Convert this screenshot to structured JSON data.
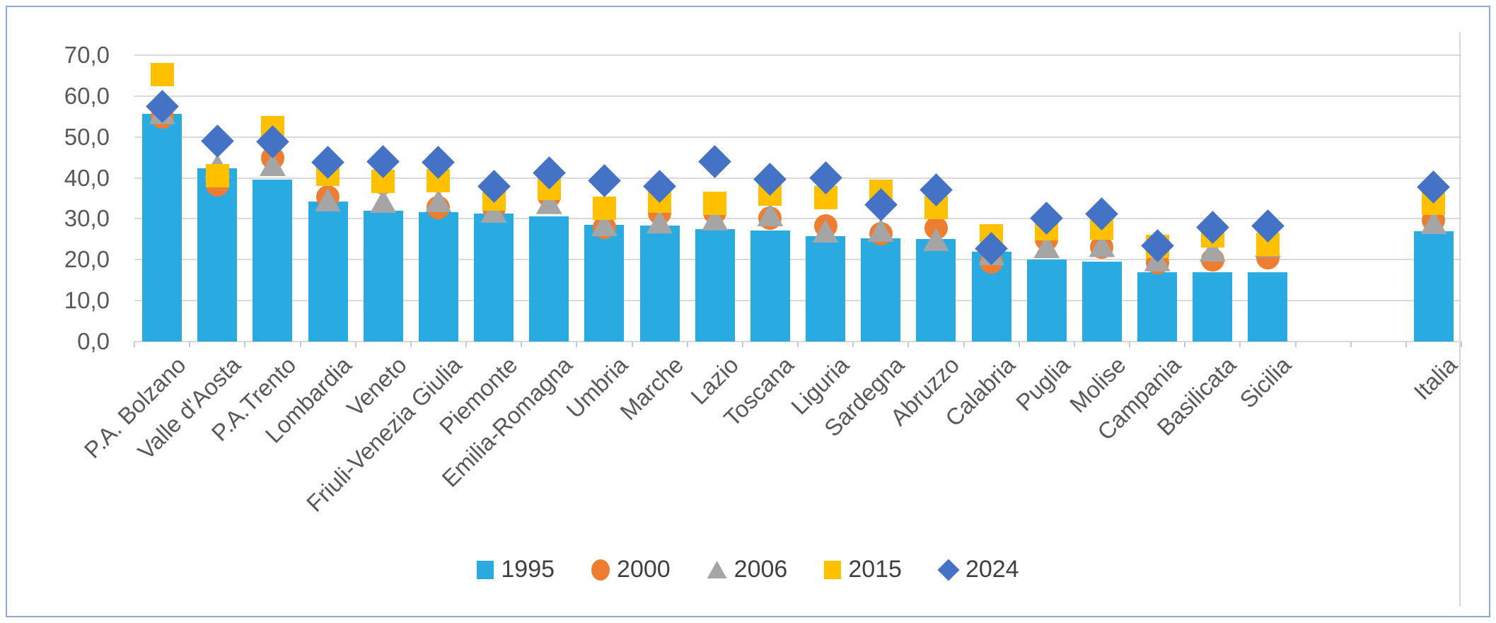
{
  "chart_data": {
    "type": "bar",
    "subtype": "bar-with-scatter-marker-overlays",
    "title": "",
    "xlabel": "",
    "ylabel": "",
    "ylim": [
      0,
      70
    ],
    "y_tick_step": 10,
    "y_tick_labels": [
      "0,0",
      "10,0",
      "20,0",
      "30,0",
      "40,0",
      "50,0",
      "60,0",
      "70,0"
    ],
    "decimal_separator": ",",
    "grid": true,
    "legend_position": "bottom",
    "gap_slots_before_last_category": 1,
    "categories": [
      "P.A. Bolzano",
      "Valle d'Aosta",
      "P.A.Trento",
      "Lombardia",
      "Veneto",
      "Friuli-Venezia Giulia",
      "Piemonte",
      "Emilia-Romagna",
      "Umbria",
      "Marche",
      "Lazio",
      "Toscana",
      "Liguria",
      "Sardegna",
      "Abruzzo",
      "Calabria",
      "Puglia",
      "Molise",
      "Campania",
      "Basilicata",
      "Sicilia",
      "Italia"
    ],
    "series": [
      {
        "name": "1995",
        "marker": "bar",
        "color": "#29ABE2",
        "values": [
          55.7,
          42.3,
          39.5,
          34.2,
          32.0,
          31.7,
          31.2,
          30.6,
          28.5,
          28.3,
          27.5,
          27.2,
          25.8,
          25.2,
          25.0,
          21.9,
          20.0,
          19.6,
          16.9,
          16.9,
          17.0,
          26.9
        ]
      },
      {
        "name": "2000",
        "marker": "circle",
        "color": "#ED7D31",
        "values": [
          54.8,
          38.3,
          44.8,
          35.4,
          38.8,
          32.7,
          32.5,
          35.5,
          28.0,
          31.3,
          31.5,
          30.2,
          28.2,
          26.4,
          27.8,
          19.5,
          24.9,
          23.0,
          19.2,
          20.0,
          20.5,
          29.6
        ]
      },
      {
        "name": "2006",
        "marker": "triangle",
        "color": "#A5A5A5",
        "values": [
          56.0,
          43.0,
          43.3,
          34.6,
          34.3,
          34.4,
          31.9,
          34.0,
          28.6,
          29.3,
          30.0,
          31.0,
          27.0,
          27.2,
          24.9,
          21.5,
          23.2,
          23.5,
          20.0,
          22.4,
          23.5,
          29.1
        ]
      },
      {
        "name": "2015",
        "marker": "square",
        "color": "#FFC000",
        "values": [
          65.2,
          40.6,
          52.2,
          40.8,
          39.1,
          39.4,
          34.8,
          37.4,
          32.6,
          34.3,
          33.8,
          36.0,
          35.1,
          36.8,
          32.8,
          25.9,
          27.5,
          27.8,
          23.2,
          25.8,
          23.8,
          33.8
        ]
      },
      {
        "name": "2024",
        "marker": "diamond",
        "color": "#4472C4",
        "values": [
          57.5,
          49.0,
          48.9,
          43.9,
          44.0,
          43.8,
          37.9,
          41.2,
          39.4,
          38.0,
          44.0,
          39.7,
          40.0,
          33.4,
          37.1,
          22.7,
          30.1,
          31.2,
          23.5,
          27.9,
          28.2,
          37.7
        ]
      }
    ],
    "style_colors": {
      "gridline": "#D9D9D9",
      "axis_text": "#595959",
      "legend_text": "#404040",
      "chart_border": "#8EAADB"
    }
  }
}
